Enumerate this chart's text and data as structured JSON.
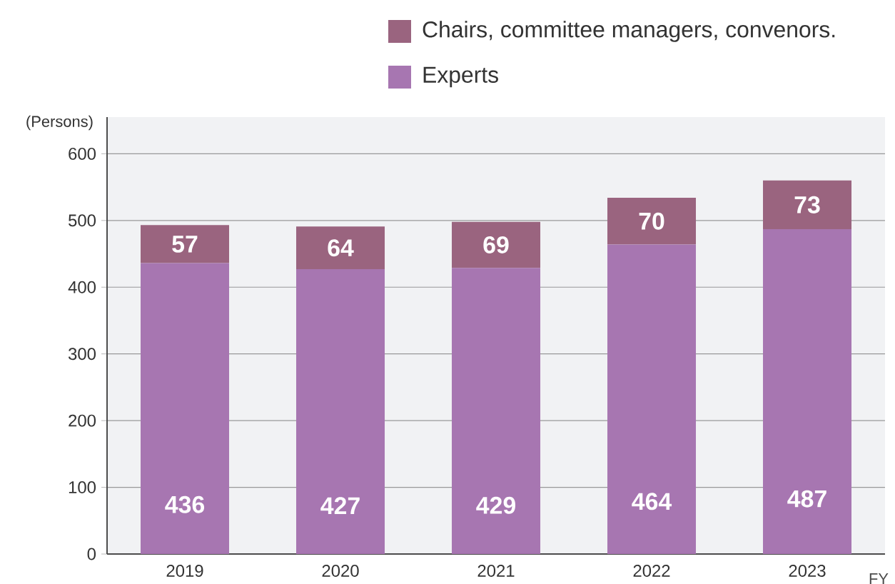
{
  "chart_data": {
    "type": "bar",
    "stacked": true,
    "xlabel": "FY",
    "ylabel": "(Persons)",
    "categories": [
      "2019",
      "2020",
      "2021",
      "2022",
      "2023"
    ],
    "series": [
      {
        "name": "Experts",
        "color": "#a776b1",
        "values": [
          436,
          427,
          429,
          464,
          487
        ]
      },
      {
        "name": "Chairs, committee managers, convenors.",
        "color": "#9a647f",
        "values": [
          57,
          64,
          69,
          70,
          73
        ]
      }
    ],
    "ylim": [
      0,
      655
    ],
    "yticks": [
      0,
      100,
      200,
      300,
      400,
      500,
      600
    ],
    "grid": "y",
    "legend": "top",
    "data_labels": true
  }
}
